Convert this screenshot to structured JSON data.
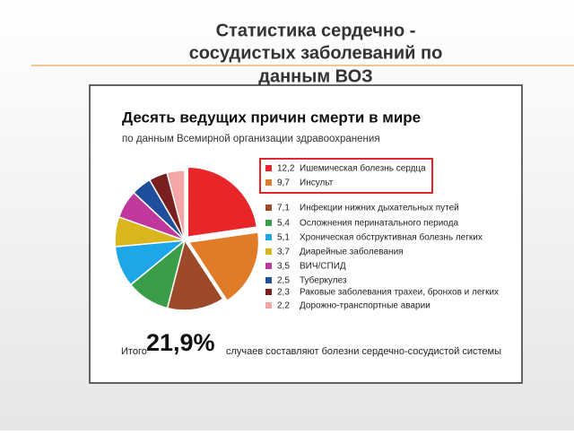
{
  "slide": {
    "title_lines": [
      "Статистика сердечно -",
      "сосудистых заболеваний по",
      "данным ВОЗ"
    ]
  },
  "chart_data": {
    "type": "pie",
    "title": "Десять ведущих причин смерти в мире",
    "subtitle": "по данным Всемирной организации здравоохранения",
    "categories": [
      "Ишемическая болезнь сердца",
      "Инсульт",
      "Инфекции нижних дыхательных путей",
      "Осложнения перинатального периода",
      "Хроническая обструктивная болезнь легких",
      "Диарейные заболевания",
      "ВИЧ/СПИД",
      "Туберкулез",
      "Раковые заболевания трахеи, бронхов и легких",
      "Дорожно-транспортные аварии"
    ],
    "values": [
      12.2,
      9.7,
      7.1,
      5.4,
      5.1,
      3.7,
      3.5,
      2.5,
      2.3,
      2.2
    ],
    "value_labels": [
      "12,2",
      "9,7",
      "7,1",
      "5,4",
      "5,1",
      "3,7",
      "3,5",
      "2,5",
      "2,3",
      "2,2"
    ],
    "colors": [
      "#e8262a",
      "#e07b28",
      "#9c4a2a",
      "#3a9e48",
      "#1ea7e8",
      "#d9b51e",
      "#c0389b",
      "#1f4e9c",
      "#7a1f1f",
      "#f4a6a6"
    ],
    "footer": {
      "prefix": "Итого",
      "total": "21,9%",
      "text": "случаев составляют болезни сердечно-сосудистой системы"
    }
  }
}
